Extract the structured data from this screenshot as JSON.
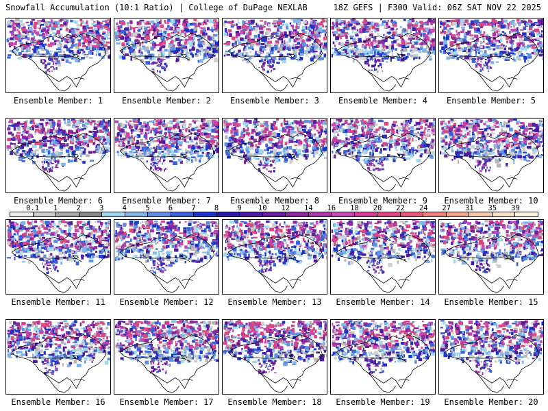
{
  "header": {
    "title_left": "Snowfall Accumulation (10:1 Ratio) | College of DuPage NEXLAB",
    "title_right": "18Z GEFS | F300 Valid: 06Z SAT NOV 22 2025"
  },
  "colorbar": {
    "labels": [
      "0.1",
      "1",
      "2",
      "3",
      "4",
      "5",
      "6",
      "7",
      "8",
      "9",
      "10",
      "12",
      "14",
      "16",
      "18",
      "20",
      "22",
      "24",
      "27",
      "31",
      "35",
      "39"
    ],
    "colors": [
      "#eeeeee",
      "#cccccc",
      "#a8a8a8",
      "#888888",
      "#9fd8ef",
      "#7fb5e8",
      "#5f8fe0",
      "#3a63d6",
      "#1f35c8",
      "#2a1aa8",
      "#4b1c9e",
      "#6a1f9a",
      "#8a2a9e",
      "#a63aa8",
      "#c04db5",
      "#cf3f96",
      "#d94880",
      "#e05c78",
      "#e8857a",
      "#f0a88a",
      "#f5c8a8",
      "#f8e2c8",
      "#fdf4e4"
    ]
  },
  "members": [
    {
      "id": 1,
      "label": "Ensemble Member: 1"
    },
    {
      "id": 2,
      "label": "Ensemble Member: 2"
    },
    {
      "id": 3,
      "label": "Ensemble Member: 3"
    },
    {
      "id": 4,
      "label": "Ensemble Member: 4"
    },
    {
      "id": 5,
      "label": "Ensemble Member: 5"
    },
    {
      "id": 6,
      "label": "Ensemble Member: 6"
    },
    {
      "id": 7,
      "label": "Ensemble Member: 7"
    },
    {
      "id": 8,
      "label": "Ensemble Member: 8"
    },
    {
      "id": 9,
      "label": "Ensemble Member: 9"
    },
    {
      "id": 10,
      "label": "Ensemble Member: 10"
    },
    {
      "id": 11,
      "label": "Ensemble Member: 11"
    },
    {
      "id": 12,
      "label": "Ensemble Member: 12"
    },
    {
      "id": 13,
      "label": "Ensemble Member: 13"
    },
    {
      "id": 14,
      "label": "Ensemble Member: 14"
    },
    {
      "id": 15,
      "label": "Ensemble Member: 15"
    },
    {
      "id": 16,
      "label": "Ensemble Member: 16"
    },
    {
      "id": 17,
      "label": "Ensemble Member: 17"
    },
    {
      "id": 18,
      "label": "Ensemble Member: 18"
    },
    {
      "id": 19,
      "label": "Ensemble Member: 19"
    },
    {
      "id": 20,
      "label": "Ensemble Member: 20"
    }
  ]
}
